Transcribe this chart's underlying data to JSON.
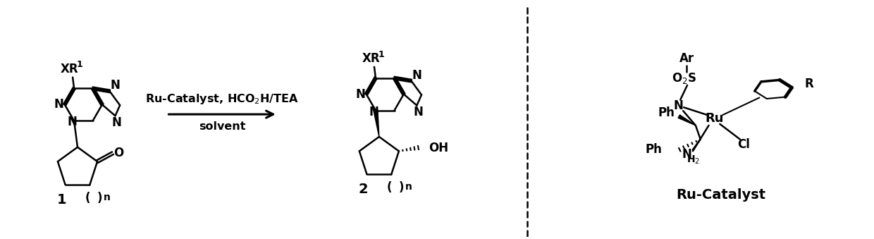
{
  "background_color": "#ffffff",
  "fig_width": 12.4,
  "fig_height": 3.39,
  "dpi": 100,
  "label1": "1",
  "label2": "2",
  "label_ru": "Ru-Catalyst",
  "arrow_text_top": "Ru-Catalyst, HCO$_2$H/TEA",
  "arrow_text_bot": "solvent"
}
